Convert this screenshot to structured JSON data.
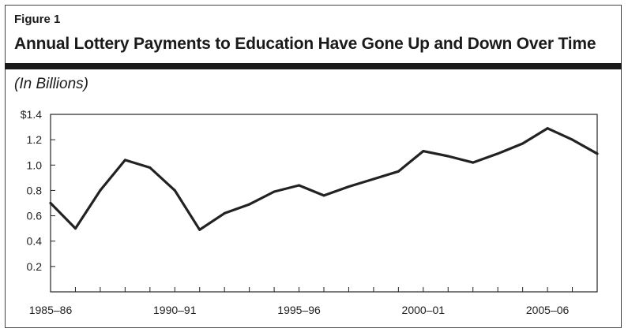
{
  "figure": {
    "label": "Figure 1",
    "title": "Annual Lottery Payments to Education Have Gone Up and Down Over Time",
    "units": "(In Billions)"
  },
  "chart_data": {
    "type": "line",
    "title": "Annual Lottery Payments to Education Have Gone Up and Down Over Time",
    "ylabel": "(In Billions)",
    "xlabel": "",
    "x": [
      "1985–86",
      "1986–87",
      "1987–88",
      "1988–89",
      "1989–90",
      "1990–91",
      "1991–92",
      "1992–93",
      "1993–94",
      "1994–95",
      "1995–96",
      "1996–97",
      "1997–98",
      "1998–99",
      "1999–00",
      "2000–01",
      "2001–02",
      "2002–03",
      "2003–04",
      "2004–05",
      "2005–06",
      "2006–07",
      "2007–08"
    ],
    "values": [
      0.7,
      0.5,
      0.8,
      1.04,
      0.98,
      0.8,
      0.49,
      0.62,
      0.69,
      0.79,
      0.84,
      0.76,
      0.83,
      0.89,
      0.95,
      1.11,
      1.07,
      1.02,
      1.09,
      1.17,
      1.29,
      1.2,
      1.09
    ],
    "ylim": [
      0,
      1.4
    ],
    "yticks": [
      {
        "value": 0.2,
        "label": "0.2"
      },
      {
        "value": 0.4,
        "label": "0.4"
      },
      {
        "value": 0.6,
        "label": "0.6"
      },
      {
        "value": 0.8,
        "label": "0.8"
      },
      {
        "value": 1.0,
        "label": "1.0"
      },
      {
        "value": 1.2,
        "label": "1.2"
      },
      {
        "value": 1.4,
        "label": "$1.4"
      }
    ],
    "xtick_labels": [
      {
        "index": 0,
        "label": "1985–86"
      },
      {
        "index": 5,
        "label": "1990–91"
      },
      {
        "index": 10,
        "label": "1995–96"
      },
      {
        "index": 15,
        "label": "2000–01"
      },
      {
        "index": 20,
        "label": "2005–06"
      }
    ],
    "grid": false,
    "line_color": "#222222"
  }
}
